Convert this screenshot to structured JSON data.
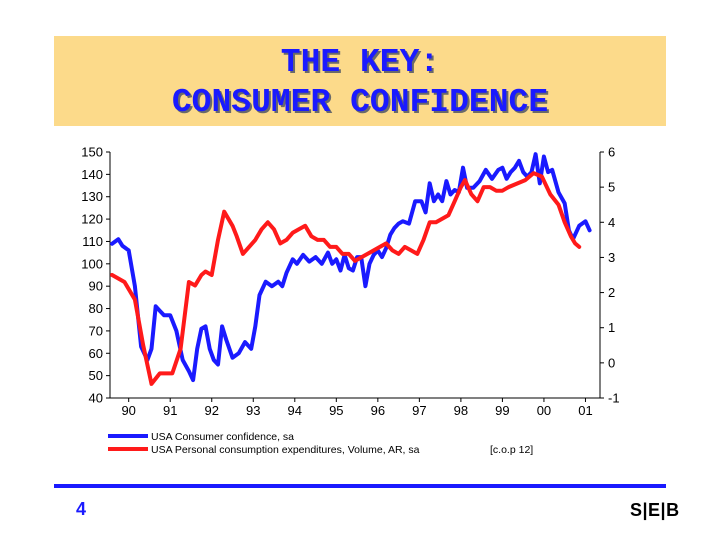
{
  "slide": {
    "title_line1": "THE KEY:",
    "title_line2": "CONSUMER CONFIDENCE",
    "page_number": "4",
    "logo_text": "S|E|B",
    "colors": {
      "title_bg": "#FCDA8A",
      "title_text": "#1a1aff",
      "footer_line": "#1a1aff"
    }
  },
  "chart_data": {
    "type": "line",
    "x_tick_labels": [
      "90",
      "91",
      "92",
      "93",
      "94",
      "95",
      "96",
      "97",
      "98",
      "99",
      "00",
      "01"
    ],
    "left_axis": {
      "ylim": [
        40,
        150
      ],
      "ticks": [
        40,
        50,
        60,
        70,
        80,
        90,
        100,
        110,
        120,
        130,
        140,
        150
      ]
    },
    "right_axis": {
      "ylim": [
        -1,
        6
      ],
      "ticks": [
        -1,
        0,
        1,
        2,
        3,
        4,
        5,
        6
      ]
    },
    "grid": false,
    "legend_position": "bottom",
    "series": [
      {
        "name": "USA Consumer confidence, sa",
        "axis": "left",
        "color": "#1a1aff",
        "x": [
          89.6,
          89.75,
          89.85,
          90.0,
          90.15,
          90.3,
          90.45,
          90.55,
          90.65,
          90.75,
          90.85,
          91.0,
          91.15,
          91.3,
          91.45,
          91.55,
          91.65,
          91.75,
          91.85,
          91.95,
          92.05,
          92.15,
          92.25,
          92.35,
          92.5,
          92.65,
          92.8,
          92.95,
          93.05,
          93.15,
          93.3,
          93.45,
          93.6,
          93.7,
          93.8,
          93.95,
          94.05,
          94.2,
          94.35,
          94.5,
          94.65,
          94.8,
          94.9,
          95.0,
          95.1,
          95.2,
          95.3,
          95.4,
          95.5,
          95.6,
          95.7,
          95.8,
          95.9,
          96.0,
          96.1,
          96.2,
          96.3,
          96.4,
          96.5,
          96.6,
          96.75,
          96.9,
          97.05,
          97.15,
          97.25,
          97.35,
          97.45,
          97.55,
          97.65,
          97.75,
          97.85,
          97.95,
          98.05,
          98.15,
          98.3,
          98.45,
          98.6,
          98.75,
          98.9,
          99.0,
          99.1,
          99.2,
          99.3,
          99.4,
          99.5,
          99.6,
          99.7,
          99.8,
          99.9,
          100.0,
          100.1,
          100.2,
          100.35,
          100.5,
          100.6,
          100.7,
          100.85,
          101.0,
          101.1
        ],
        "values": [
          109,
          111,
          108,
          106,
          90,
          63,
          57,
          62,
          81,
          79,
          77,
          77,
          70,
          57,
          52,
          48,
          62,
          71,
          72,
          62,
          57,
          55,
          72,
          66,
          58,
          60,
          65,
          62,
          72,
          86,
          92,
          90,
          92,
          90,
          96,
          102,
          100,
          104,
          101,
          103,
          100,
          105,
          100,
          102,
          97,
          104,
          98,
          97,
          103,
          103,
          90,
          100,
          104,
          106,
          103,
          107,
          113,
          116,
          118,
          119,
          118,
          128,
          128,
          123,
          136,
          128,
          131,
          128,
          137,
          131,
          133,
          132,
          143,
          134,
          134,
          137,
          142,
          138,
          142,
          143,
          138,
          141,
          143,
          146,
          141,
          139,
          141,
          149,
          136,
          148,
          141,
          142,
          132,
          127,
          115,
          111,
          117,
          119,
          115
        ]
      },
      {
        "name": "USA Personal consumption expenditures, Volume, AR, sa",
        "bracket_note": "[c.o.p 12]",
        "axis": "right",
        "color": "#ff1a1a",
        "x": [
          89.6,
          89.9,
          90.15,
          90.35,
          90.55,
          90.75,
          90.9,
          91.05,
          91.25,
          91.45,
          91.6,
          91.75,
          91.85,
          92.0,
          92.15,
          92.3,
          92.5,
          92.6,
          92.75,
          92.9,
          93.05,
          93.2,
          93.35,
          93.5,
          93.65,
          93.8,
          93.95,
          94.1,
          94.25,
          94.4,
          94.55,
          94.7,
          94.85,
          95.0,
          95.15,
          95.3,
          95.45,
          95.6,
          95.75,
          95.9,
          96.05,
          96.2,
          96.35,
          96.5,
          96.65,
          96.8,
          96.95,
          97.1,
          97.25,
          97.4,
          97.55,
          97.7,
          97.85,
          98.0,
          98.1,
          98.25,
          98.4,
          98.55,
          98.7,
          98.85,
          99.0,
          99.15,
          99.35,
          99.55,
          99.75,
          99.95,
          100.15,
          100.35,
          100.5,
          100.65,
          100.75,
          100.85
        ],
        "values": [
          2.5,
          2.3,
          1.8,
          0.5,
          -0.6,
          -0.3,
          -0.3,
          -0.3,
          0.4,
          2.3,
          2.2,
          2.5,
          2.6,
          2.5,
          3.5,
          4.3,
          3.9,
          3.6,
          3.1,
          3.3,
          3.5,
          3.8,
          4.0,
          3.8,
          3.4,
          3.5,
          3.7,
          3.8,
          3.9,
          3.6,
          3.5,
          3.5,
          3.3,
          3.3,
          3.1,
          3.1,
          2.9,
          3.0,
          3.1,
          3.2,
          3.3,
          3.4,
          3.2,
          3.1,
          3.3,
          3.2,
          3.1,
          3.5,
          4.0,
          4.0,
          4.1,
          4.2,
          4.6,
          5.0,
          5.2,
          4.8,
          4.6,
          5.0,
          5.0,
          4.9,
          4.9,
          5.0,
          5.1,
          5.2,
          5.4,
          5.3,
          4.8,
          4.5,
          4.0,
          3.6,
          3.4,
          3.3
        ]
      }
    ]
  }
}
